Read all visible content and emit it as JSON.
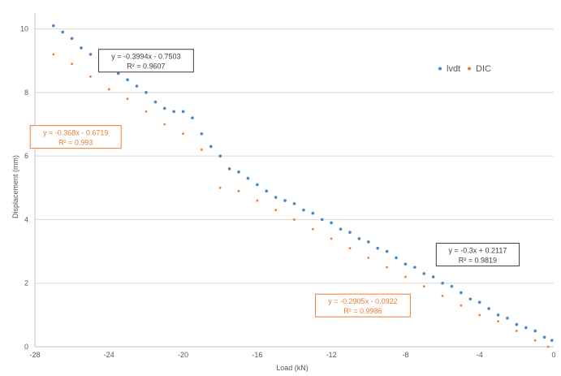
{
  "chart_data": {
    "type": "scatter",
    "xlabel": "Load (kN)",
    "ylabel": "Displacement (mm)",
    "xlim": [
      -28,
      0
    ],
    "ylim": [
      0,
      10.5
    ],
    "xticks": [
      -28,
      -24,
      -20,
      -16,
      -12,
      -8,
      -4,
      0
    ],
    "yticks": [
      0,
      2,
      4,
      6,
      8,
      10
    ],
    "grid": "horizontal",
    "legend_position": "top-right",
    "colors": {
      "lvdt": "#4a86c8",
      "dic": "#ed7d31",
      "grid": "#d9d9d9",
      "axis": "#bfbfbf",
      "eq_box": "#404040"
    },
    "legend": [
      {
        "label": "lvdt",
        "color": "#4a86c8"
      },
      {
        "label": "DIC",
        "color": "#ed7d31"
      }
    ],
    "series": [
      {
        "name": "lvdt",
        "color": "#4a86c8",
        "x": [
          -27.0,
          -26.5,
          -26.0,
          -25.5,
          -25.0,
          -24.5,
          -24.0,
          -23.5,
          -23.0,
          -22.5,
          -22.0,
          -21.5,
          -21.0,
          -20.5,
          -20.0,
          -19.5,
          -19.0,
          -18.5,
          -18.0,
          -17.5,
          -17.0,
          -16.5,
          -16.0,
          -15.5,
          -15.0,
          -14.5,
          -14.0,
          -13.5,
          -13.0,
          -12.5,
          -12.0,
          -11.5,
          -11.0,
          -10.5,
          -10.0,
          -9.5,
          -9.0,
          -8.5,
          -8.0,
          -7.5,
          -7.0,
          -6.5,
          -6.0,
          -5.5,
          -5.0,
          -4.5,
          -4.0,
          -3.5,
          -3.0,
          -2.5,
          -2.0,
          -1.5,
          -1.0,
          -0.5,
          -0.1
        ],
        "y": [
          10.1,
          9.9,
          9.7,
          9.4,
          9.2,
          9.0,
          8.8,
          8.6,
          8.4,
          8.2,
          8.0,
          7.7,
          7.5,
          7.4,
          7.4,
          7.2,
          6.7,
          6.3,
          6.0,
          5.6,
          5.5,
          5.3,
          5.1,
          4.9,
          4.7,
          4.6,
          4.5,
          4.3,
          4.2,
          4.0,
          3.9,
          3.7,
          3.6,
          3.4,
          3.3,
          3.1,
          3.0,
          2.8,
          2.6,
          2.5,
          2.3,
          2.2,
          2.0,
          1.9,
          1.7,
          1.5,
          1.4,
          1.2,
          1.0,
          0.9,
          0.7,
          0.6,
          0.5,
          0.3,
          0.2
        ]
      },
      {
        "name": "DIC",
        "color": "#ed7d31",
        "x": [
          -27.0,
          -26.0,
          -25.0,
          -24.0,
          -23.0,
          -22.0,
          -21.0,
          -20.0,
          -19.0,
          -18.0,
          -17.0,
          -16.0,
          -15.0,
          -14.0,
          -13.0,
          -12.0,
          -11.0,
          -10.0,
          -9.0,
          -8.0,
          -7.0,
          -6.0,
          -5.0,
          -4.0,
          -3.0,
          -2.0,
          -1.0,
          -0.3
        ],
        "y": [
          9.2,
          8.9,
          8.5,
          8.1,
          7.8,
          7.4,
          7.0,
          6.7,
          6.2,
          5.0,
          4.9,
          4.6,
          4.3,
          4.0,
          3.7,
          3.4,
          3.1,
          2.8,
          2.5,
          2.2,
          1.9,
          1.6,
          1.3,
          1.0,
          0.8,
          0.5,
          0.2,
          0.0
        ]
      }
    ],
    "annotations": [
      {
        "line1": "y = -0.3994x - 0.7503",
        "line2": "R² = 0.9607",
        "color": "#404040",
        "anchor_x": -22.0,
        "anchor_y": 9.0
      },
      {
        "line1": "y = -0.368x - 0.6719",
        "line2": "R² = 0.993",
        "color": "#ed7d31",
        "anchor_x": -25.8,
        "anchor_y": 6.6
      },
      {
        "line1": "y = -0.3x + 0.2117",
        "line2": "R² = 0.9819",
        "color": "#404040",
        "anchor_x": -4.1,
        "anchor_y": 2.9
      },
      {
        "line1": "y = -0.2905x - 0.0922",
        "line2": "R² = 0.9986",
        "color": "#ed7d31",
        "anchor_x": -10.3,
        "anchor_y": 1.3
      }
    ]
  }
}
